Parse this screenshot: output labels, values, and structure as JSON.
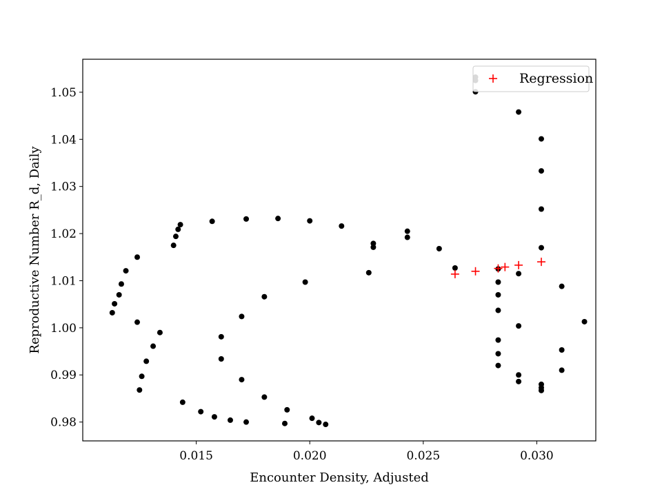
{
  "chart_data": {
    "type": "scatter",
    "title": "",
    "xlabel": "Encounter Density, Adjusted",
    "ylabel": "Reproductive Number R_d, Daily",
    "xlim": [
      0.01,
      0.0326
    ],
    "ylim": [
      0.976,
      1.057
    ],
    "xticks": [
      0.015,
      0.02,
      0.025,
      0.03
    ],
    "xtick_labels": [
      "0.015",
      "0.020",
      "0.025",
      "0.030"
    ],
    "yticks": [
      0.98,
      0.99,
      1.0,
      1.01,
      1.02,
      1.03,
      1.04,
      1.05
    ],
    "ytick_labels": [
      "0.98",
      "0.99",
      "1.00",
      "1.01",
      "1.02",
      "1.03",
      "1.04",
      "1.05"
    ],
    "grid": false,
    "legend": {
      "placement": "top-right",
      "entries": [
        "Regression"
      ]
    },
    "series": [
      {
        "marker": "dot",
        "color": "#000000",
        "points": [
          [
            0.0113,
            1.0032
          ],
          [
            0.0114,
            1.0051
          ],
          [
            0.0116,
            1.007
          ],
          [
            0.0117,
            1.0093
          ],
          [
            0.0119,
            1.0121
          ],
          [
            0.0124,
            1.015
          ],
          [
            0.0124,
            1.0012
          ],
          [
            0.0125,
            0.9868
          ],
          [
            0.0126,
            0.9897
          ],
          [
            0.0128,
            0.9929
          ],
          [
            0.0131,
            0.9961
          ],
          [
            0.0134,
            0.999
          ],
          [
            0.014,
            1.0175
          ],
          [
            0.0141,
            1.0194
          ],
          [
            0.0142,
            1.0209
          ],
          [
            0.0143,
            1.0219
          ],
          [
            0.0144,
            0.9842
          ],
          [
            0.0152,
            0.9822
          ],
          [
            0.0157,
            1.0226
          ],
          [
            0.0158,
            0.9811
          ],
          [
            0.0161,
            0.9981
          ],
          [
            0.0161,
            0.9934
          ],
          [
            0.0165,
            0.9804
          ],
          [
            0.017,
            1.0024
          ],
          [
            0.017,
            0.989
          ],
          [
            0.0172,
            1.0231
          ],
          [
            0.0172,
            0.98
          ],
          [
            0.018,
            1.0066
          ],
          [
            0.018,
            0.9853
          ],
          [
            0.0186,
            1.0232
          ],
          [
            0.0189,
            0.9797
          ],
          [
            0.019,
            0.9826
          ],
          [
            0.0198,
            1.0097
          ],
          [
            0.02,
            1.0227
          ],
          [
            0.0201,
            0.9808
          ],
          [
            0.0204,
            0.9799
          ],
          [
            0.0207,
            0.9795
          ],
          [
            0.0214,
            1.0216
          ],
          [
            0.0226,
            1.0117
          ],
          [
            0.0228,
            1.0179
          ],
          [
            0.0228,
            1.0171
          ],
          [
            0.0243,
            1.0205
          ],
          [
            0.0243,
            1.0192
          ],
          [
            0.0257,
            1.0168
          ],
          [
            0.0264,
            1.0127
          ],
          [
            0.0273,
            1.0532
          ],
          [
            0.0273,
            1.0525
          ],
          [
            0.0273,
            1.0501
          ],
          [
            0.0283,
            1.0125
          ],
          [
            0.0283,
            1.0097
          ],
          [
            0.0283,
            1.007
          ],
          [
            0.0283,
            1.0037
          ],
          [
            0.0283,
            0.9974
          ],
          [
            0.0283,
            0.9945
          ],
          [
            0.0283,
            0.992
          ],
          [
            0.0292,
            1.0458
          ],
          [
            0.0292,
            1.0115
          ],
          [
            0.0292,
            1.0004
          ],
          [
            0.0292,
            0.99
          ],
          [
            0.0292,
            0.9886
          ],
          [
            0.0302,
            1.0401
          ],
          [
            0.0302,
            1.0333
          ],
          [
            0.0302,
            1.0252
          ],
          [
            0.0302,
            1.017
          ],
          [
            0.0302,
            0.988
          ],
          [
            0.0302,
            0.9873
          ],
          [
            0.0302,
            0.9867
          ],
          [
            0.0311,
            1.0088
          ],
          [
            0.0311,
            0.9953
          ],
          [
            0.0311,
            0.991
          ],
          [
            0.0321,
            1.0013
          ]
        ]
      },
      {
        "name": "Regression",
        "marker": "plus",
        "color": "#ff0000",
        "points": [
          [
            0.0264,
            1.0114
          ],
          [
            0.0273,
            1.012
          ],
          [
            0.0283,
            1.0126
          ],
          [
            0.0286,
            1.0129
          ],
          [
            0.0292,
            1.0133
          ],
          [
            0.0302,
            1.014
          ]
        ]
      }
    ]
  }
}
